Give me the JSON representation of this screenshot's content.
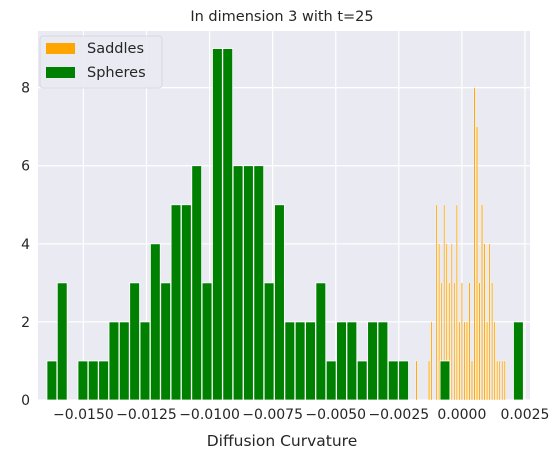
{
  "chart_data": {
    "type": "histogram",
    "title": "In dimension 3 with t=25",
    "xlabel": "Diffusion Curvature",
    "ylabel": "",
    "xlim": [
      -0.0168,
      0.0027
    ],
    "ylim": [
      0,
      9.45
    ],
    "grid": true,
    "legend_position": "top-left",
    "x_ticks": [
      -0.015,
      -0.0125,
      -0.01,
      -0.0075,
      -0.005,
      -0.0025,
      0.0,
      0.0025
    ],
    "x_tick_labels": [
      "−0.0150",
      "−0.0125",
      "−0.0100",
      "−0.0075",
      "−0.0050",
      "−0.0025",
      "0.0000",
      "0.0025"
    ],
    "y_ticks": [
      0,
      2,
      4,
      6,
      8
    ],
    "y_tick_labels": [
      "0",
      "2",
      "4",
      "6",
      "8"
    ],
    "series": [
      {
        "name": "Saddles",
        "color": "#ffa500",
        "bin_width": 5.2e-05,
        "bins": [
          {
            "x": -0.0018,
            "count": 1
          },
          {
            "x": -0.0013,
            "count": 1
          },
          {
            "x": -0.0012,
            "count": 2
          },
          {
            "x": -0.001,
            "count": 5
          },
          {
            "x": -0.0009,
            "count": 4
          },
          {
            "x": -0.0008,
            "count": 3
          },
          {
            "x": -0.0007,
            "count": 5
          },
          {
            "x": -0.0006,
            "count": 4
          },
          {
            "x": -0.0005,
            "count": 3
          },
          {
            "x": -0.0004,
            "count": 4
          },
          {
            "x": -0.0003,
            "count": 3
          },
          {
            "x": -0.0002,
            "count": 5
          },
          {
            "x": -0.0001,
            "count": 2
          },
          {
            "x": 0.0,
            "count": 3
          },
          {
            "x": 0.0001,
            "count": 2
          },
          {
            "x": 0.0002,
            "count": 2
          },
          {
            "x": 0.0003,
            "count": 3
          },
          {
            "x": 0.0004,
            "count": 1
          },
          {
            "x": 0.0005,
            "count": 8
          },
          {
            "x": 0.0006,
            "count": 7
          },
          {
            "x": 0.0007,
            "count": 3
          },
          {
            "x": 0.0008,
            "count": 5
          },
          {
            "x": 0.0009,
            "count": 4
          },
          {
            "x": 0.001,
            "count": 2
          },
          {
            "x": 0.0011,
            "count": 4
          },
          {
            "x": 0.0012,
            "count": 3
          },
          {
            "x": 0.0013,
            "count": 2
          },
          {
            "x": 0.0014,
            "count": 1
          },
          {
            "x": 0.0015,
            "count": 1
          },
          {
            "x": 0.0016,
            "count": 1
          },
          {
            "x": 0.0017,
            "count": 1
          }
        ]
      },
      {
        "name": "Spheres",
        "color": "#008000",
        "bin_width": 0.00039,
        "bins": [
          {
            "x": -0.01625,
            "count": 1
          },
          {
            "x": -0.01584,
            "count": 3
          },
          {
            "x": -0.01502,
            "count": 1
          },
          {
            "x": -0.01461,
            "count": 1
          },
          {
            "x": -0.0142,
            "count": 1
          },
          {
            "x": -0.01379,
            "count": 2
          },
          {
            "x": -0.01338,
            "count": 2
          },
          {
            "x": -0.01297,
            "count": 3
          },
          {
            "x": -0.01256,
            "count": 2
          },
          {
            "x": -0.01215,
            "count": 4
          },
          {
            "x": -0.01174,
            "count": 3
          },
          {
            "x": -0.01133,
            "count": 5
          },
          {
            "x": -0.01092,
            "count": 5
          },
          {
            "x": -0.01051,
            "count": 6
          },
          {
            "x": -0.0101,
            "count": 3
          },
          {
            "x": -0.00969,
            "count": 9
          },
          {
            "x": -0.00928,
            "count": 9
          },
          {
            "x": -0.00887,
            "count": 6
          },
          {
            "x": -0.00846,
            "count": 6
          },
          {
            "x": -0.00805,
            "count": 6
          },
          {
            "x": -0.00764,
            "count": 3
          },
          {
            "x": -0.00723,
            "count": 5
          },
          {
            "x": -0.00682,
            "count": 2
          },
          {
            "x": -0.00641,
            "count": 2
          },
          {
            "x": -0.006,
            "count": 2
          },
          {
            "x": -0.00559,
            "count": 3
          },
          {
            "x": -0.00518,
            "count": 1
          },
          {
            "x": -0.00477,
            "count": 2
          },
          {
            "x": -0.00436,
            "count": 2
          },
          {
            "x": -0.00395,
            "count": 1
          },
          {
            "x": -0.00354,
            "count": 2
          },
          {
            "x": -0.00313,
            "count": 2
          },
          {
            "x": -0.00272,
            "count": 1
          },
          {
            "x": -0.00231,
            "count": 1
          },
          {
            "x": -0.0019,
            "count": 0
          },
          {
            "x": -0.00149,
            "count": 0
          },
          {
            "x": -0.00108,
            "count": 0
          },
          {
            "x": -0.00067,
            "count": 1
          },
          {
            "x": 0.00224,
            "count": 2
          }
        ]
      }
    ]
  }
}
